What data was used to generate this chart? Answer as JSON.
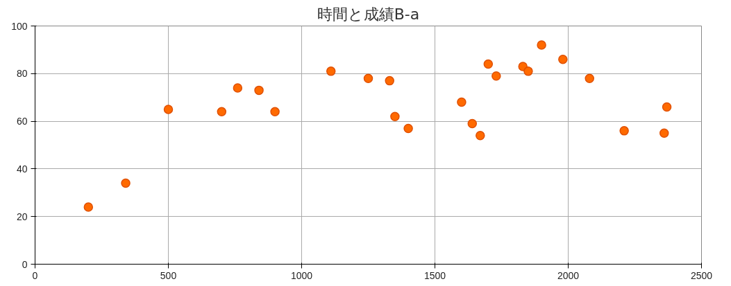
{
  "chart_data": {
    "type": "scatter",
    "title": "時間と成績B-a",
    "x": [
      200,
      340,
      500,
      700,
      760,
      840,
      900,
      1110,
      1250,
      1330,
      1350,
      1400,
      1600,
      1640,
      1670,
      1700,
      1730,
      1830,
      1850,
      1900,
      1980,
      2080,
      2210,
      2360,
      2370
    ],
    "values": [
      24,
      34,
      65,
      64,
      74,
      73,
      64,
      81,
      78,
      77,
      62,
      57,
      68,
      59,
      54,
      84,
      79,
      83,
      81,
      92,
      86,
      78,
      56,
      55,
      66
    ],
    "color": "#ff6a00",
    "marker": "circle",
    "xlim": [
      0,
      2500
    ],
    "xticks": [
      0,
      500,
      1000,
      1500,
      2000,
      2500
    ],
    "ylim": [
      0,
      100
    ],
    "yticks": [
      0,
      20,
      40,
      60,
      80,
      100
    ],
    "grid": true
  }
}
